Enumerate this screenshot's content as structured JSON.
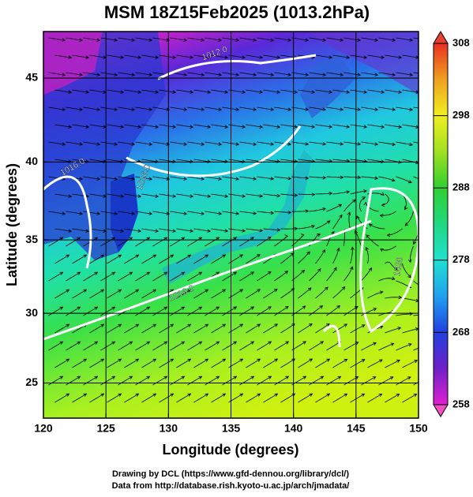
{
  "map": {
    "title": "MSM 18Z15Feb2025 (1013.2hPa)",
    "xlabel": "Longitude (degrees)",
    "ylabel": "Latitude  (degrees)",
    "projection": "mercator",
    "xlim": [
      120,
      150
    ],
    "ylim": [
      22.4,
      47.6
    ],
    "xticks": [
      120,
      125,
      130,
      135,
      140,
      145,
      150
    ],
    "yticks": [
      25,
      30,
      35,
      40,
      45
    ],
    "grid": true,
    "colorbar": {
      "lim": [
        258,
        308
      ],
      "ticks": [
        258,
        268,
        278,
        288,
        298,
        308
      ]
    },
    "contour_labels": [
      "1012.0",
      "1016.0",
      "1016.0",
      "1016.0",
      "1020"
    ],
    "credits": [
      "Drawing by DCL (https://www.gfd-dennou.org/library/dcl/)",
      "Data from http://database.rish.kyoto-u.ac.jp/arch/jmadata/"
    ]
  }
}
